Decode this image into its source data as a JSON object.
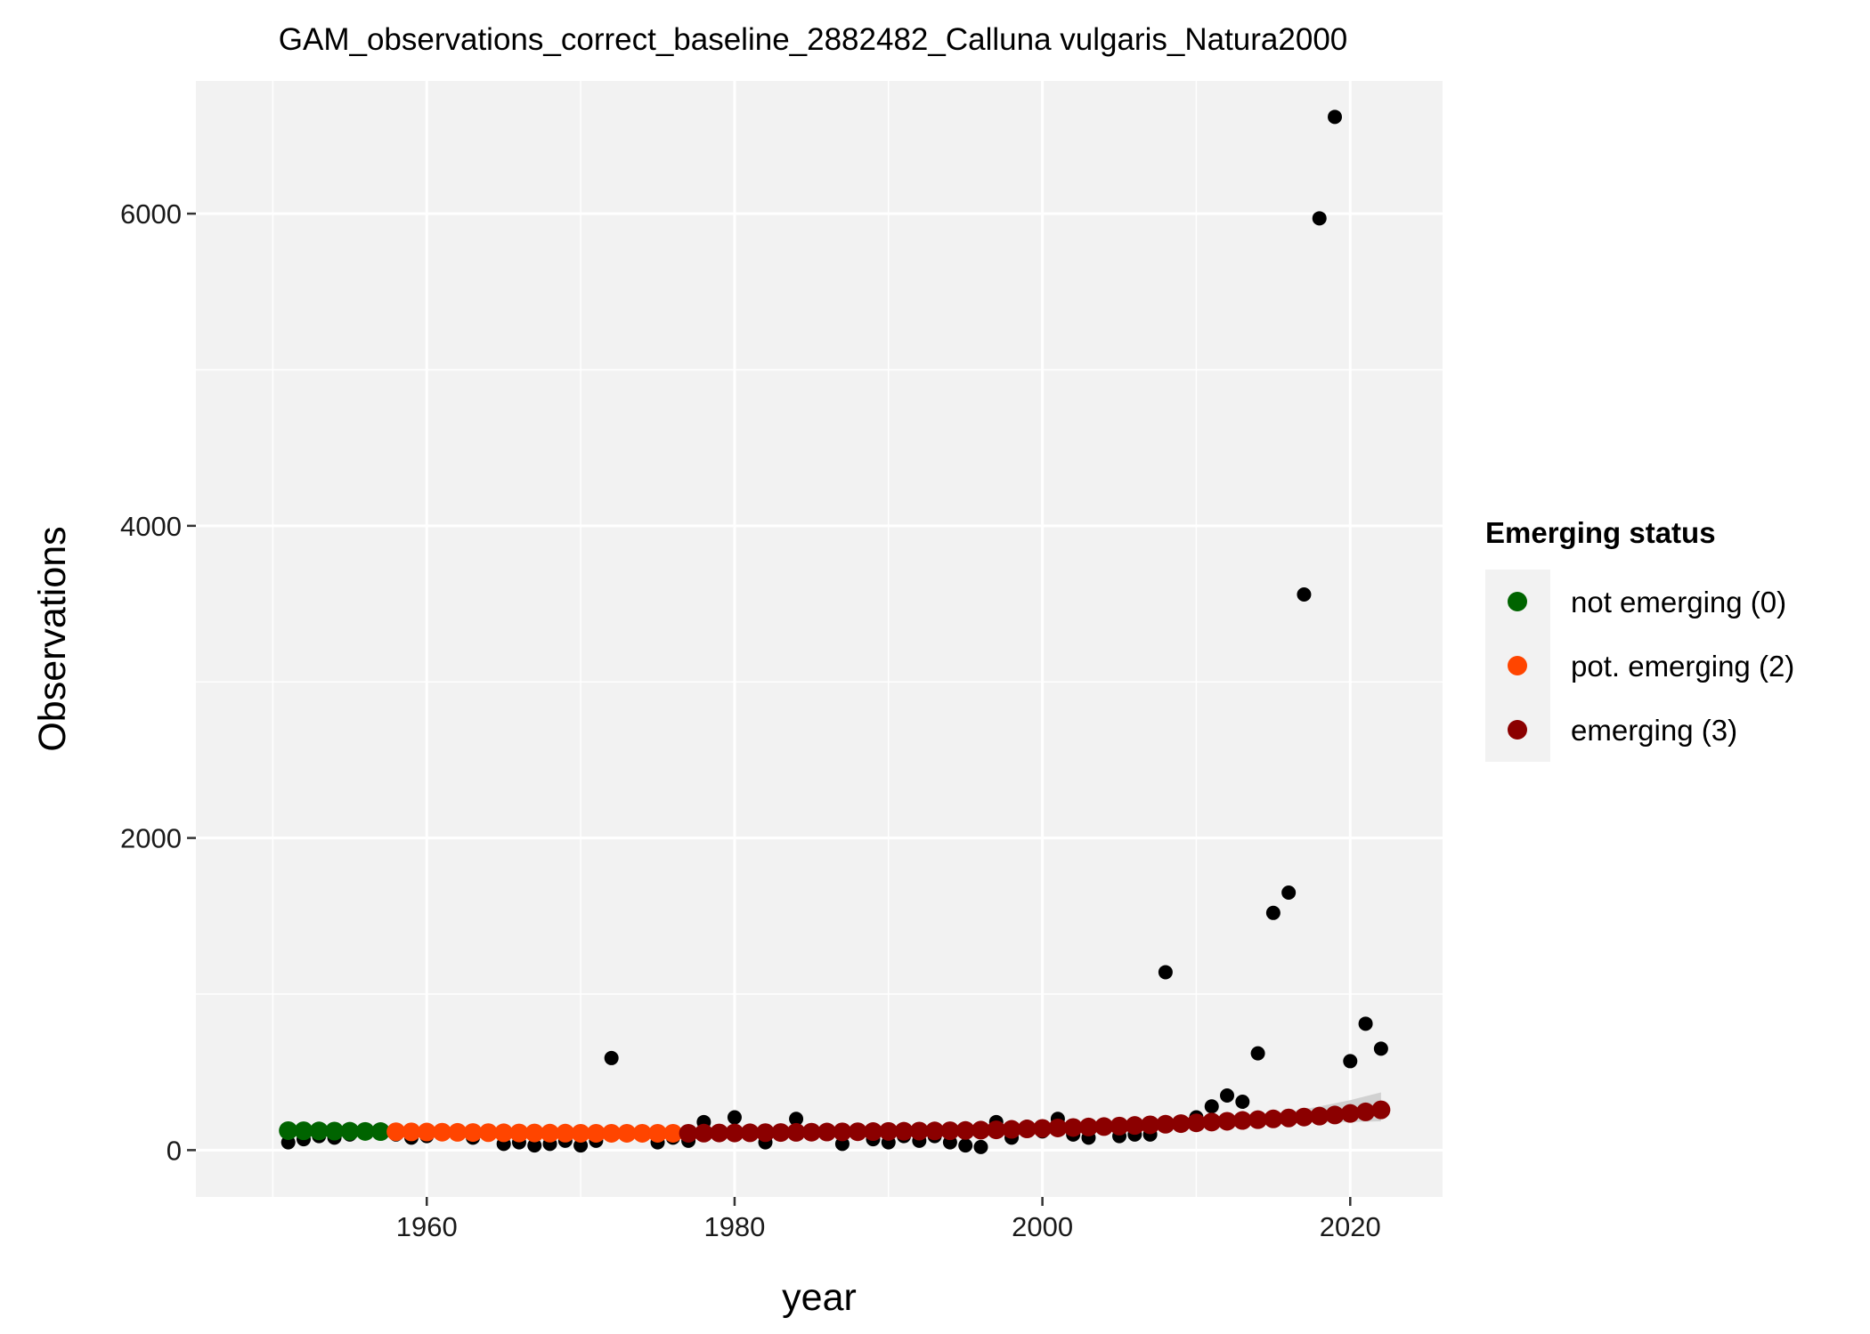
{
  "chart_data": {
    "type": "scatter",
    "title": "GAM_observations_correct_baseline_2882482_Calluna vulgaris_Natura2000",
    "xlabel": "year",
    "ylabel": "Observations",
    "xlim": [
      1945,
      2026
    ],
    "ylim": [
      -300,
      6850
    ],
    "x_ticks": [
      1960,
      1980,
      2000,
      2020
    ],
    "x_tick_labels": [
      "1960",
      "1980",
      "2000",
      "2020"
    ],
    "y_ticks": [
      0,
      2000,
      4000,
      6000
    ],
    "y_tick_labels": [
      "0",
      "2000",
      "4000",
      "6000"
    ],
    "grid": true,
    "legend": {
      "title": "Emerging status",
      "position": "right",
      "entries": [
        {
          "label": "not emerging (0)",
          "color": "#006400"
        },
        {
          "label": "pot. emerging (2)",
          "color": "#FF4500"
        },
        {
          "label": "emerging (3)",
          "color": "#8B0000"
        }
      ]
    },
    "colors": {
      "panel_background": "#f2f2f2",
      "grid": "#ffffff",
      "observation_points": "#000000",
      "confidence_band": "#c8c8c8"
    },
    "observations": {
      "x": [
        1951,
        1952,
        1953,
        1954,
        1955,
        1956,
        1957,
        1958,
        1959,
        1960,
        1961,
        1962,
        1963,
        1964,
        1965,
        1966,
        1967,
        1968,
        1969,
        1970,
        1971,
        1972,
        1973,
        1974,
        1975,
        1976,
        1977,
        1978,
        1979,
        1980,
        1981,
        1982,
        1983,
        1984,
        1985,
        1986,
        1987,
        1988,
        1989,
        1990,
        1991,
        1992,
        1993,
        1994,
        1995,
        1996,
        1997,
        1998,
        1999,
        2000,
        2001,
        2002,
        2003,
        2004,
        2005,
        2006,
        2007,
        2008,
        2009,
        2010,
        2011,
        2012,
        2013,
        2014,
        2015,
        2016,
        2017,
        2018,
        2019,
        2020,
        2021,
        2022
      ],
      "y": [
        50,
        70,
        90,
        80,
        100,
        120,
        110,
        100,
        80,
        90,
        110,
        120,
        80,
        100,
        40,
        50,
        30,
        40,
        60,
        30,
        60,
        590,
        120,
        100,
        50,
        80,
        60,
        180,
        120,
        210,
        100,
        50,
        110,
        200,
        120,
        110,
        40,
        130,
        70,
        50,
        90,
        60,
        90,
        50,
        30,
        20,
        180,
        80,
        150,
        120,
        200,
        100,
        80,
        150,
        90,
        100,
        100,
        1140,
        170,
        210,
        280,
        350,
        310,
        620,
        1520,
        1650,
        3560,
        5970,
        6620,
        570,
        810,
        650
      ]
    },
    "series": [
      {
        "name": "not emerging (0)",
        "color": "#006400",
        "x": [
          1951,
          1952,
          1953,
          1954,
          1955,
          1956,
          1957
        ],
        "y": [
          125,
          124,
          123,
          122,
          121,
          120,
          119
        ]
      },
      {
        "name": "pot. emerging (2)",
        "color": "#FF4500",
        "x": [
          1958,
          1959,
          1960,
          1961,
          1962,
          1963,
          1964,
          1965,
          1966,
          1967,
          1968,
          1969,
          1970,
          1971,
          1972,
          1973,
          1974,
          1975,
          1976
        ],
        "y": [
          118,
          117,
          116,
          115,
          114,
          113,
          112,
          111,
          110,
          110,
          109,
          109,
          108,
          108,
          108,
          108,
          108,
          108,
          108
        ]
      },
      {
        "name": "emerging (3)",
        "color": "#8B0000",
        "x": [
          1977,
          1978,
          1979,
          1980,
          1981,
          1982,
          1983,
          1984,
          1985,
          1986,
          1987,
          1988,
          1989,
          1990,
          1991,
          1992,
          1993,
          1994,
          1995,
          1996,
          1997,
          1998,
          1999,
          2000,
          2001,
          2002,
          2003,
          2004,
          2005,
          2006,
          2007,
          2008,
          2009,
          2010,
          2011,
          2012,
          2013,
          2014,
          2015,
          2016,
          2017,
          2018,
          2019,
          2020,
          2021,
          2022
        ],
        "y": [
          108,
          109,
          110,
          110,
          111,
          112,
          113,
          114,
          115,
          116,
          117,
          118,
          119,
          120,
          121,
          122,
          123,
          124,
          126,
          128,
          130,
          133,
          136,
          139,
          142,
          145,
          148,
          151,
          154,
          158,
          162,
          166,
          170,
          175,
          180,
          185,
          190,
          195,
          200,
          206,
          212,
          218,
          225,
          235,
          245,
          258
        ]
      }
    ],
    "confidence_band": {
      "x": [
        2008,
        2010,
        2012,
        2014,
        2016,
        2018,
        2020,
        2022
      ],
      "lower": [
        150,
        160,
        165,
        170,
        175,
        178,
        180,
        185
      ],
      "upper": [
        185,
        195,
        210,
        225,
        245,
        280,
        320,
        370
      ]
    }
  }
}
